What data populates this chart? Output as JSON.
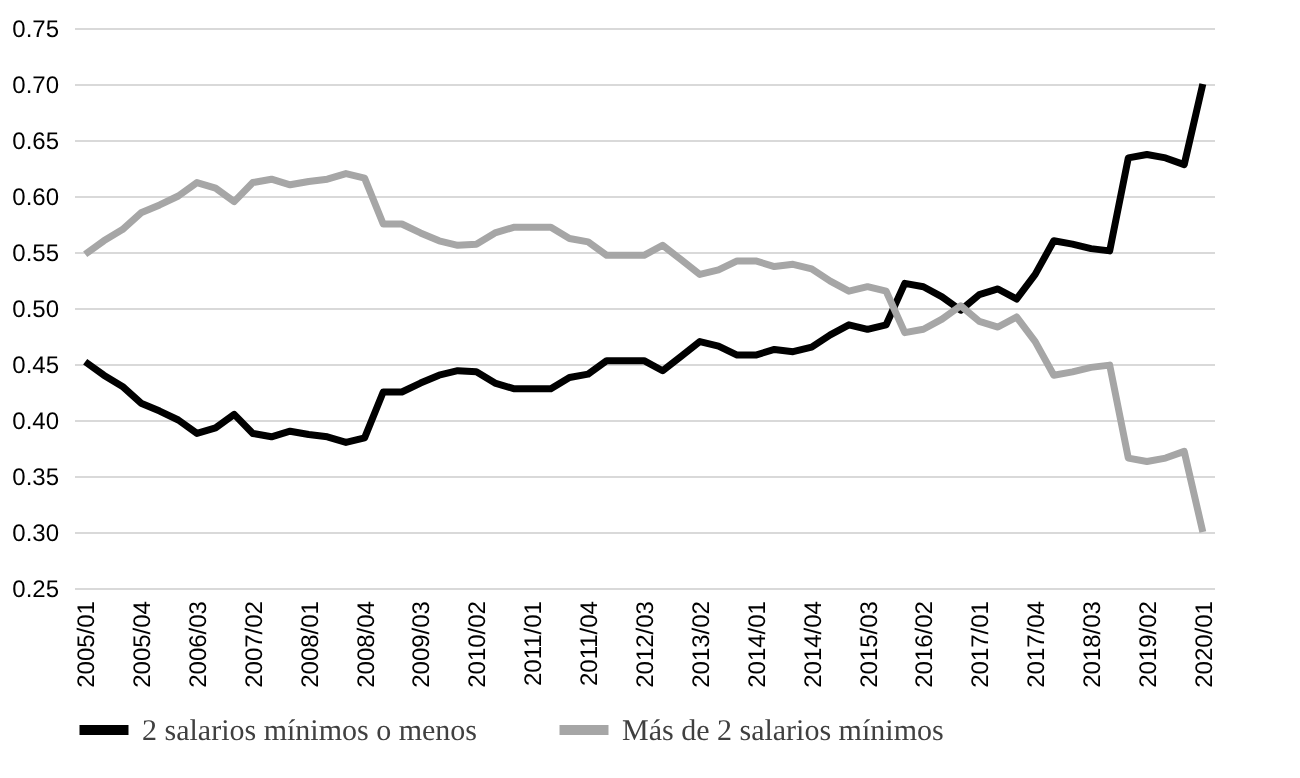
{
  "chart_data": {
    "type": "line",
    "categories": [
      "2005/01",
      null,
      null,
      "2005/04",
      null,
      null,
      "2006/03",
      null,
      null,
      "2007/02",
      null,
      null,
      "2008/01",
      null,
      null,
      "2008/04",
      null,
      null,
      "2009/03",
      null,
      null,
      "2010/02",
      null,
      null,
      "2011/01",
      null,
      null,
      "2011/04",
      null,
      null,
      "2012/03",
      null,
      null,
      "2013/02",
      null,
      null,
      "2014/01",
      null,
      null,
      "2014/04",
      null,
      null,
      "2015/03",
      null,
      null,
      "2016/02",
      null,
      null,
      "2017/01",
      null,
      null,
      "2017/04",
      null,
      null,
      "2018/03",
      null,
      null,
      "2019/02",
      null,
      null,
      "2020/01"
    ],
    "series": [
      {
        "name": "2 salarios mínimos o menos",
        "color": "#000000",
        "values": [
          0.452,
          0.44,
          0.43,
          0.415,
          0.408,
          0.4,
          0.388,
          0.393,
          0.405,
          0.388,
          0.385,
          0.39,
          0.387,
          0.385,
          0.38,
          0.384,
          0.425,
          0.425,
          0.433,
          0.44,
          0.444,
          0.443,
          0.433,
          0.428,
          0.428,
          0.428,
          0.438,
          0.441,
          0.453,
          0.453,
          0.453,
          0.444,
          0.457,
          0.47,
          0.466,
          0.458,
          0.458,
          0.463,
          0.461,
          0.465,
          0.476,
          0.485,
          0.481,
          0.485,
          0.522,
          0.519,
          0.51,
          0.498,
          0.512,
          0.517,
          0.508,
          0.53,
          0.56,
          0.557,
          0.553,
          0.551,
          0.634,
          0.637,
          0.634,
          0.628,
          0.7
        ]
      },
      {
        "name": "Más de 2 salarios mínimos",
        "color": "#a6a6a6",
        "values": [
          0.548,
          0.56,
          0.57,
          0.585,
          0.592,
          0.6,
          0.612,
          0.607,
          0.595,
          0.612,
          0.615,
          0.61,
          0.613,
          0.615,
          0.62,
          0.616,
          0.575,
          0.575,
          0.567,
          0.56,
          0.556,
          0.557,
          0.567,
          0.572,
          0.572,
          0.572,
          0.562,
          0.559,
          0.547,
          0.547,
          0.547,
          0.556,
          0.543,
          0.53,
          0.534,
          0.542,
          0.542,
          0.537,
          0.539,
          0.535,
          0.524,
          0.515,
          0.519,
          0.515,
          0.478,
          0.481,
          0.49,
          0.502,
          0.488,
          0.483,
          0.492,
          0.47,
          0.44,
          0.443,
          0.447,
          0.449,
          0.366,
          0.363,
          0.366,
          0.372,
          0.3
        ]
      }
    ],
    "ylim": [
      0.25,
      0.75
    ],
    "yticks": [
      0.25,
      {
        "value": 0.3,
        "label": "0.30"
      },
      0.35,
      {
        "value": 0.4,
        "label": "0.40"
      },
      0.45,
      {
        "value": 0.5,
        "label": "0.50"
      },
      0.55,
      {
        "value": 0.6,
        "label": "0.60"
      },
      0.65,
      {
        "value": 0.7,
        "label": "0.70"
      },
      0.75
    ],
    "grid": "y",
    "legend": "bottom"
  }
}
